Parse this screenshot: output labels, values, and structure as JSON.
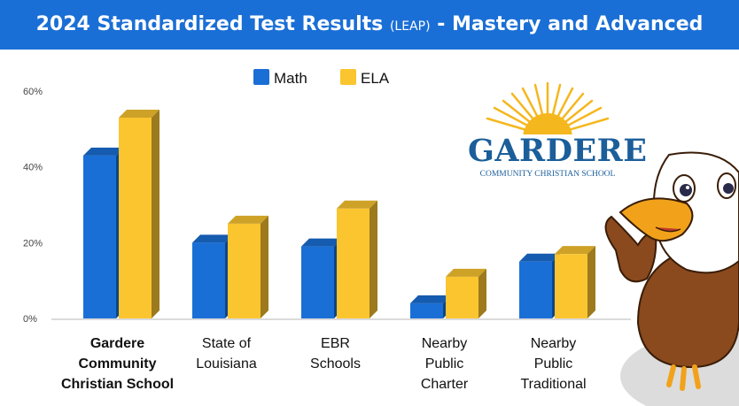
{
  "header": {
    "title_main": "2024 Standardized Test Results",
    "title_small": "(LEAP)",
    "title_tail": "- Mastery and Advanced"
  },
  "logo": {
    "name": "GARDERE",
    "subtitle": "COMMUNITY CHRISTIAN SCHOOL"
  },
  "mascot": {
    "icon": "eagle-mascot-icon"
  },
  "colors": {
    "banner": "#1a6fd6",
    "math": "#1a6fd6",
    "ela": "#fbc52f",
    "logo_blue": "#1b5e9a",
    "sun": "#f5b71e"
  },
  "chart_data": {
    "type": "bar",
    "categories": [
      [
        "Gardere",
        "Community",
        "Christian School"
      ],
      [
        "State of",
        "Louisiana"
      ],
      [
        "EBR",
        "Schools"
      ],
      [
        "Nearby",
        "Public",
        "Charter"
      ],
      [
        "Nearby",
        "Public",
        "Traditional"
      ]
    ],
    "series": [
      {
        "name": "Math",
        "color": "#1a6fd6",
        "values": [
          43,
          20,
          19,
          4,
          15
        ]
      },
      {
        "name": "ELA",
        "color": "#fbc52f",
        "values": [
          53,
          25,
          29,
          11,
          17
        ]
      }
    ],
    "yticks": [
      "0%",
      "20%",
      "40%",
      "60%"
    ],
    "ytick_values": [
      0,
      20,
      40,
      60
    ],
    "ylim": [
      0,
      60
    ],
    "grid": false,
    "legend": "top",
    "style": "3d"
  }
}
